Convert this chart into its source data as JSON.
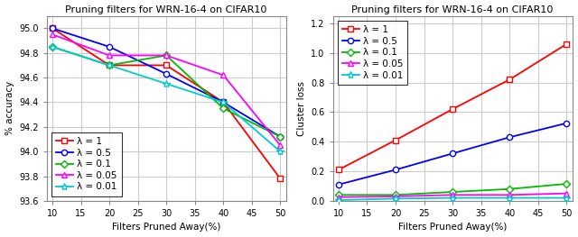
{
  "x": [
    10,
    20,
    30,
    40,
    50
  ],
  "title": "Pruning filters for WRN-16-4 on CIFAR10",
  "xlabel": "Filters Pruned Away(%)",
  "ylabel_left": "% accuracy",
  "ylabel_right": "Cluster loss",
  "accuracy": {
    "lambda_1": [
      95.0,
      94.7,
      94.7,
      94.4,
      93.78
    ],
    "lambda_05": [
      95.0,
      94.85,
      94.63,
      94.4,
      94.12
    ],
    "lambda_01": [
      94.85,
      94.7,
      94.78,
      94.35,
      94.12
    ],
    "lambda_005": [
      94.95,
      94.78,
      94.78,
      94.62,
      94.05
    ],
    "lambda_001": [
      94.85,
      94.7,
      94.55,
      94.4,
      94.0
    ]
  },
  "cluster_loss": {
    "lambda_1": [
      0.21,
      0.41,
      0.62,
      0.82,
      1.06
    ],
    "lambda_05": [
      0.11,
      0.21,
      0.32,
      0.43,
      0.525
    ],
    "lambda_01": [
      0.04,
      0.04,
      0.06,
      0.08,
      0.115
    ],
    "lambda_005": [
      0.025,
      0.03,
      0.04,
      0.04,
      0.05
    ],
    "lambda_001": [
      0.005,
      0.015,
      0.02,
      0.02,
      0.02
    ]
  },
  "colors": {
    "lambda_1": "#ff0000",
    "lambda_05": "#0000ff",
    "lambda_01": "#00bb00",
    "lambda_005": "#ff00ff",
    "lambda_001": "#00cccc"
  },
  "markers": {
    "lambda_1": "s",
    "lambda_05": "o",
    "lambda_01": "D",
    "lambda_005": "^",
    "lambda_001": "*"
  },
  "legend_labels": {
    "lambda_1": "λ = 1",
    "lambda_05": "λ = 0.5",
    "lambda_01": "λ = 0.1",
    "lambda_005": "λ = 0.05",
    "lambda_001": "λ = 0.01"
  },
  "ylim_left": [
    93.6,
    95.1
  ],
  "ylim_right": [
    0.0,
    1.25
  ],
  "yticks_left": [
    93.6,
    93.8,
    94.0,
    94.2,
    94.4,
    94.6,
    94.8,
    95.0
  ],
  "yticks_right": [
    0.0,
    0.2,
    0.4,
    0.6,
    0.8,
    1.0,
    1.2
  ],
  "xticks": [
    10,
    15,
    20,
    25,
    30,
    35,
    40,
    45,
    50
  ],
  "grid_color": "#cccccc",
  "background_color": "#ffffff",
  "title_fontsize": 8,
  "label_fontsize": 7.5,
  "tick_fontsize": 7,
  "legend_fontsize": 7.5,
  "linewidth": 1.3,
  "markersize": 4.5
}
